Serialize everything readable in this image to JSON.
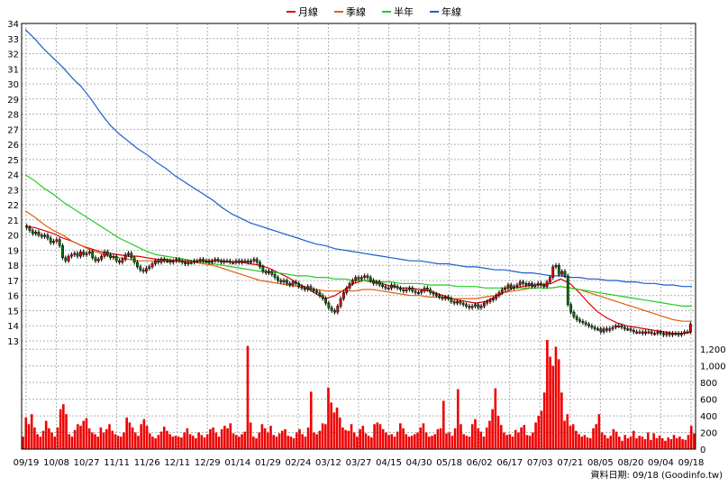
{
  "chart_data": [
    {
      "type": "candlestick",
      "legend": [
        "月線",
        "季線",
        "半年",
        "年線"
      ],
      "colors": {
        "月線": "#dd0000",
        "季線": "#e06010",
        "半年": "#22cc22",
        "年線": "#1a5fcc",
        "up": "#dd0000",
        "down": "#007700",
        "grid": "#b0b0b0"
      },
      "x_tick_labels": [
        "09/19",
        "10/08",
        "10/27",
        "11/11",
        "11/26",
        "12/11",
        "12/29",
        "01/14",
        "01/29",
        "02/24",
        "03/12",
        "03/27",
        "04/15",
        "04/30",
        "05/18",
        "06/02",
        "06/17",
        "07/03",
        "07/21",
        "08/05",
        "08/20",
        "09/04",
        "09/18"
      ],
      "ylim": [
        13,
        34
      ],
      "y_ticks": [
        13,
        14,
        15,
        16,
        17,
        18,
        19,
        20,
        21,
        22,
        23,
        24,
        25,
        26,
        27,
        28,
        29,
        30,
        31,
        32,
        33,
        34
      ],
      "grid": true,
      "legend_position": "top-center",
      "ohlc_close": [
        20.5,
        20.3,
        20.1,
        20.2,
        20.0,
        19.9,
        20.0,
        19.8,
        19.5,
        19.6,
        19.7,
        19.3,
        18.5,
        18.3,
        18.6,
        18.7,
        18.8,
        18.6,
        18.9,
        18.7,
        18.8,
        18.9,
        18.5,
        18.3,
        18.4,
        18.6,
        18.9,
        18.7,
        18.5,
        18.6,
        18.3,
        18.2,
        18.4,
        18.7,
        18.8,
        18.5,
        18.2,
        17.9,
        17.7,
        17.6,
        17.8,
        17.9,
        18.1,
        18.3,
        18.2,
        18.4,
        18.3,
        18.3,
        18.2,
        18.3,
        18.4,
        18.3,
        18.2,
        18.1,
        18.2,
        18.2,
        18.3,
        18.3,
        18.4,
        18.3,
        18.3,
        18.2,
        18.3,
        18.4,
        18.3,
        18.2,
        18.3,
        18.3,
        18.2,
        18.2,
        18.3,
        18.2,
        18.3,
        18.3,
        18.2,
        18.3,
        18.4,
        18.2,
        17.9,
        17.6,
        17.5,
        17.6,
        17.4,
        17.2,
        17.0,
        16.9,
        17.0,
        16.8,
        16.7,
        16.9,
        16.8,
        16.6,
        16.5,
        16.4,
        16.6,
        16.4,
        16.3,
        16.2,
        16.0,
        15.8,
        15.5,
        15.2,
        15.0,
        14.9,
        15.3,
        15.8,
        16.2,
        16.5,
        16.8,
        17.0,
        17.2,
        17.1,
        17.2,
        17.3,
        17.2,
        17.0,
        16.8,
        16.9,
        16.7,
        16.6,
        16.5,
        16.5,
        16.7,
        16.6,
        16.5,
        16.4,
        16.3,
        16.4,
        16.5,
        16.3,
        16.2,
        16.2,
        16.3,
        16.5,
        16.4,
        16.2,
        16.1,
        16.0,
        15.9,
        15.8,
        15.9,
        15.8,
        15.6,
        15.5,
        15.6,
        15.5,
        15.4,
        15.3,
        15.2,
        15.3,
        15.4,
        15.2,
        15.3,
        15.5,
        15.6,
        15.7,
        15.8,
        16.0,
        16.2,
        16.4,
        16.5,
        16.7,
        16.5,
        16.6,
        16.7,
        16.9,
        16.8,
        16.7,
        16.8,
        16.6,
        16.7,
        16.8,
        16.7,
        16.6,
        16.9,
        17.2,
        17.9,
        18.0,
        17.4,
        17.6,
        17.3,
        15.4,
        14.9,
        14.6,
        14.4,
        14.3,
        14.2,
        14.1,
        14.0,
        13.9,
        13.8,
        13.8,
        13.6,
        13.8,
        13.7,
        13.8,
        13.9,
        14.0,
        14.0,
        13.9,
        13.8,
        13.8,
        13.7,
        13.6,
        13.6,
        13.6,
        13.5,
        13.6,
        13.6,
        13.5,
        13.5,
        13.6,
        13.5,
        13.4,
        13.5,
        13.4,
        13.5,
        13.5,
        13.4,
        13.5,
        13.6,
        13.6,
        14.1
      ],
      "series": [
        {
          "name": "月線",
          "values": [
            20.6,
            20.5,
            20.3,
            20.1,
            19.8,
            19.6,
            19.3,
            19.1,
            18.9,
            18.8,
            18.7,
            18.6,
            18.6,
            18.5,
            18.4,
            18.4,
            18.3,
            18.3,
            18.3,
            18.3,
            18.3,
            18.3,
            18.2,
            18.2,
            18.1,
            18.0,
            17.8,
            17.5,
            17.2,
            16.8,
            16.5,
            16.1,
            15.8,
            16.0,
            16.4,
            16.8,
            17.0,
            16.9,
            16.8,
            16.6,
            16.5,
            16.5,
            16.4,
            16.3,
            16.1,
            15.9,
            15.7,
            15.6,
            15.5,
            15.6,
            15.9,
            16.2,
            16.5,
            16.6,
            16.7,
            16.7,
            16.8,
            17.1,
            16.8,
            16.2,
            15.5,
            14.9,
            14.5,
            14.2,
            14.0,
            13.9,
            13.8,
            13.7,
            13.6,
            13.5,
            13.5,
            13.6
          ]
        },
        {
          "name": "季線",
          "values": [
            21.6,
            21.2,
            20.7,
            20.3,
            20.0,
            19.6,
            19.3,
            19.0,
            18.8,
            18.6,
            18.5,
            18.4,
            18.3,
            18.3,
            18.3,
            18.3,
            18.3,
            18.2,
            18.2,
            18.1,
            18.0,
            17.8,
            17.6,
            17.4,
            17.2,
            17.0,
            16.9,
            16.8,
            16.7,
            16.6,
            16.5,
            16.4,
            16.3,
            16.3,
            16.3,
            16.3,
            16.4,
            16.4,
            16.3,
            16.2,
            16.1,
            16.0,
            16.0,
            15.9,
            15.9,
            15.8,
            15.8,
            15.8,
            15.8,
            15.9,
            16.0,
            16.2,
            16.3,
            16.4,
            16.5,
            16.5,
            16.5,
            16.6,
            16.5,
            16.4,
            16.2,
            16.0,
            15.8,
            15.6,
            15.4,
            15.2,
            15.0,
            14.8,
            14.6,
            14.4,
            14.3,
            14.3
          ]
        },
        {
          "name": "半年",
          "values": [
            24.0,
            23.6,
            23.1,
            22.7,
            22.2,
            21.8,
            21.4,
            21.0,
            20.6,
            20.2,
            19.8,
            19.5,
            19.2,
            18.9,
            18.7,
            18.6,
            18.5,
            18.4,
            18.3,
            18.2,
            18.1,
            18.0,
            17.9,
            17.8,
            17.7,
            17.6,
            17.6,
            17.5,
            17.4,
            17.3,
            17.3,
            17.2,
            17.2,
            17.1,
            17.1,
            17.0,
            17.0,
            17.0,
            16.9,
            16.9,
            16.8,
            16.8,
            16.8,
            16.7,
            16.7,
            16.7,
            16.6,
            16.6,
            16.6,
            16.5,
            16.5,
            16.5,
            16.5,
            16.5,
            16.5,
            16.5,
            16.5,
            16.6,
            16.5,
            16.4,
            16.3,
            16.2,
            16.1,
            16.0,
            15.9,
            15.8,
            15.7,
            15.6,
            15.5,
            15.4,
            15.3,
            15.3
          ]
        },
        {
          "name": "年線",
          "values": [
            33.6,
            33.0,
            32.3,
            31.7,
            31.1,
            30.4,
            29.8,
            29.0,
            28.1,
            27.3,
            26.7,
            26.2,
            25.7,
            25.3,
            24.8,
            24.4,
            23.9,
            23.5,
            23.1,
            22.7,
            22.3,
            21.8,
            21.4,
            21.1,
            20.8,
            20.6,
            20.4,
            20.2,
            20.0,
            19.8,
            19.6,
            19.4,
            19.3,
            19.1,
            19.0,
            18.9,
            18.8,
            18.7,
            18.6,
            18.5,
            18.4,
            18.3,
            18.3,
            18.2,
            18.1,
            18.1,
            18.0,
            17.9,
            17.9,
            17.8,
            17.7,
            17.7,
            17.6,
            17.5,
            17.5,
            17.4,
            17.3,
            17.3,
            17.2,
            17.2,
            17.1,
            17.1,
            17.0,
            17.0,
            16.9,
            16.9,
            16.8,
            16.8,
            16.7,
            16.7,
            16.6,
            16.6
          ]
        }
      ]
    },
    {
      "type": "bar",
      "ylim": [
        0,
        1300
      ],
      "y_ticks": [
        0,
        200,
        400,
        600,
        800,
        1000,
        1200
      ],
      "y_tick_labels": [
        "0",
        "200",
        "400",
        "600",
        "800",
        "1,000",
        "1,200"
      ],
      "grid": true,
      "values": [
        150,
        380,
        300,
        420,
        260,
        180,
        150,
        220,
        340,
        250,
        200,
        150,
        260,
        480,
        540,
        420,
        180,
        150,
        230,
        300,
        280,
        340,
        370,
        250,
        200,
        180,
        150,
        260,
        200,
        240,
        300,
        220,
        180,
        160,
        150,
        200,
        380,
        320,
        260,
        200,
        160,
        300,
        360,
        280,
        190,
        150,
        130,
        170,
        210,
        270,
        220,
        180,
        150,
        160,
        150,
        140,
        200,
        250,
        180,
        160,
        130,
        200,
        170,
        140,
        180,
        240,
        260,
        200,
        150,
        240,
        280,
        250,
        310,
        190,
        170,
        150,
        180,
        210,
        1240,
        320,
        150,
        130,
        200,
        300,
        250,
        200,
        280,
        170,
        150,
        190,
        220,
        240,
        160,
        150,
        130,
        200,
        240,
        180,
        150,
        260,
        690,
        200,
        180,
        220,
        310,
        300,
        740,
        560,
        440,
        500,
        380,
        260,
        230,
        220,
        300,
        200,
        150,
        240,
        280,
        190,
        160,
        140,
        300,
        320,
        300,
        240,
        200,
        170,
        180,
        150,
        210,
        310,
        250,
        180,
        150,
        160,
        180,
        200,
        260,
        310,
        200,
        150,
        160,
        180,
        240,
        250,
        580,
        190,
        200,
        160,
        250,
        720,
        300,
        180,
        160,
        150,
        300,
        360,
        250,
        210,
        150,
        260,
        340,
        480,
        730,
        400,
        290,
        200,
        170,
        180,
        150,
        230,
        200,
        260,
        290,
        170,
        160,
        200,
        320,
        400,
        460,
        680,
        1310,
        1110,
        1000,
        1230,
        1080,
        680,
        340,
        420,
        280,
        300,
        220,
        180,
        150,
        170,
        140,
        130,
        250,
        300,
        420,
        200,
        170,
        130,
        160,
        240,
        210,
        150,
        100,
        170,
        130,
        150,
        220,
        130,
        160,
        150,
        120,
        200,
        110,
        190,
        130,
        160,
        130,
        100,
        140,
        120,
        170,
        130,
        150,
        120,
        110,
        170,
        280,
        190
      ]
    }
  ],
  "source_note": "資料日期: 09/18  (Goodinfo.tw)"
}
